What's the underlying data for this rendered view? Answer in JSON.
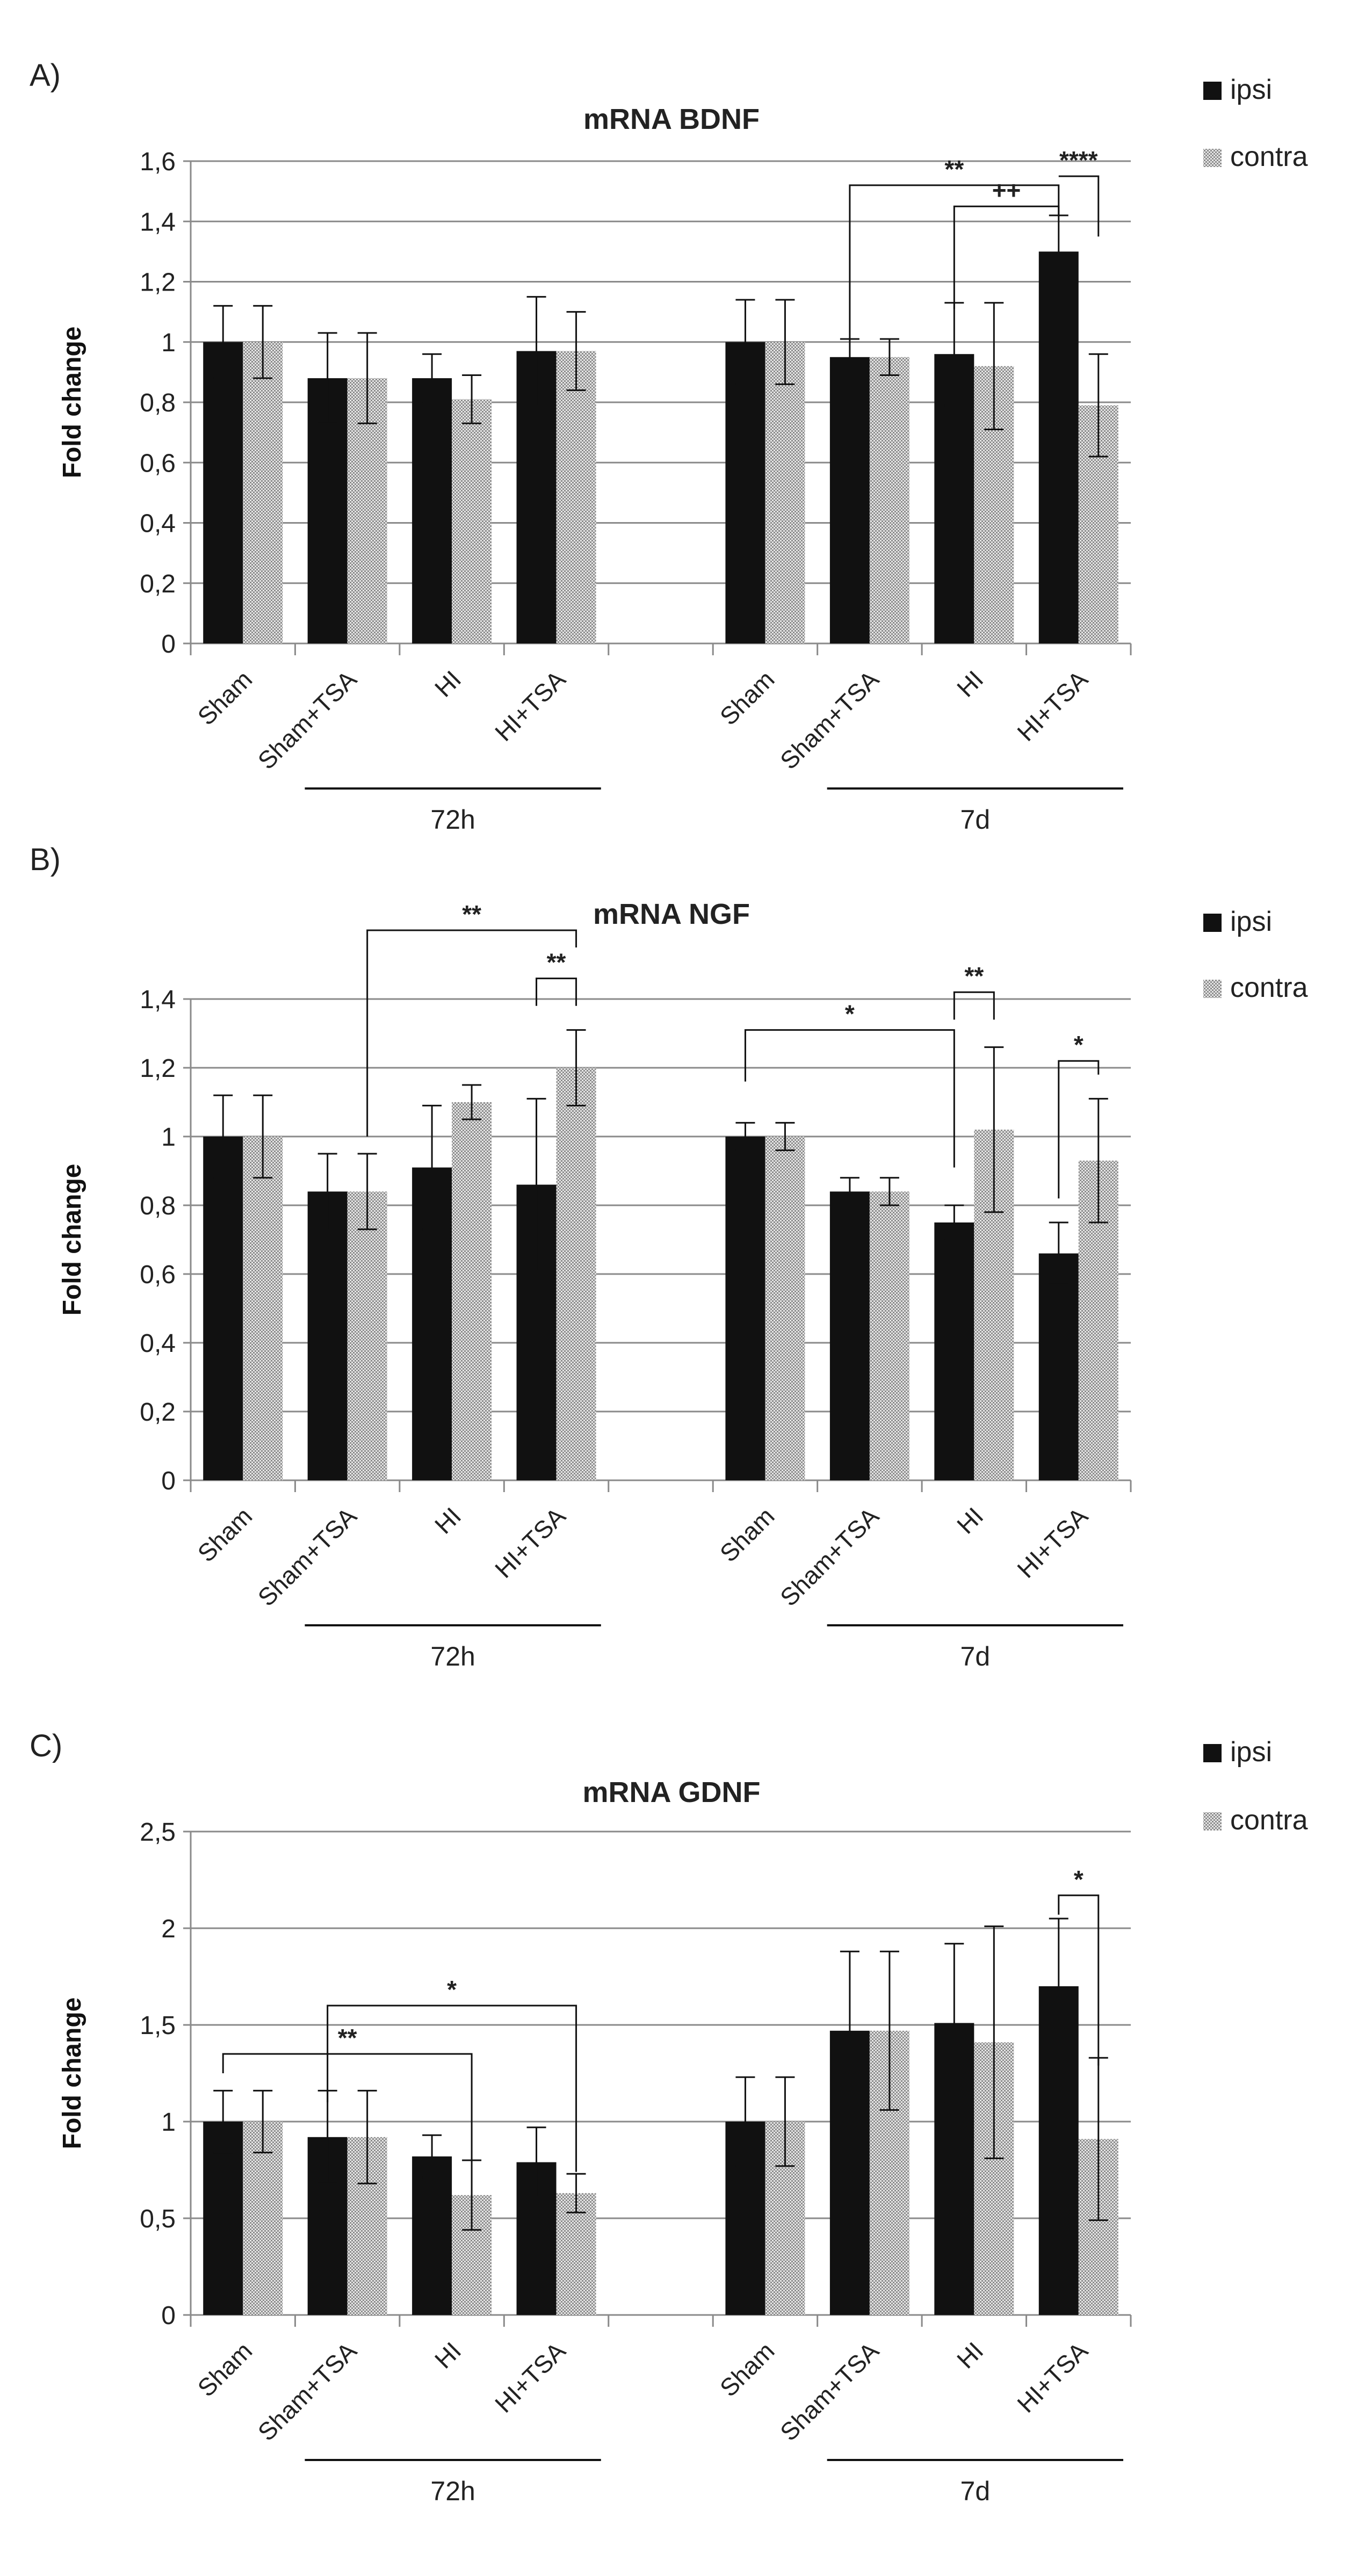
{
  "chart_data": [
    {
      "panel": "A)",
      "type": "bar",
      "title": "mRNA BDNF",
      "ylabel": "Fold change",
      "ylim": [
        0,
        1.6
      ],
      "yticks": [
        "0",
        "0,2",
        "0,4",
        "0,6",
        "0,8",
        "1",
        "1,2",
        "1,4",
        "1,6"
      ],
      "categories": [
        "Sham",
        "Sham+TSA",
        "HI",
        "HI+TSA",
        "Sham",
        "Sham+TSA",
        "HI",
        "HI+TSA"
      ],
      "groups": [
        {
          "label": "72h",
          "from": 1,
          "to": 3
        },
        {
          "label": "7d",
          "from": 5,
          "to": 7
        }
      ],
      "series": [
        {
          "name": "ipsi",
          "values": [
            1.0,
            0.88,
            0.88,
            0.97,
            1.0,
            0.95,
            0.96,
            1.3
          ],
          "errors": [
            0.12,
            0.15,
            0.08,
            0.18,
            0.14,
            0.06,
            0.17,
            0.12
          ]
        },
        {
          "name": "contra",
          "values": [
            1.0,
            0.88,
            0.81,
            0.97,
            1.0,
            0.95,
            0.92,
            0.79
          ],
          "errors": [
            0.12,
            0.15,
            0.08,
            0.13,
            0.14,
            0.06,
            0.21,
            0.17
          ]
        }
      ],
      "significance": [
        {
          "label": "**",
          "from": [
            5,
            "ipsi"
          ],
          "to": [
            7,
            "ipsi"
          ],
          "level": 1.52,
          "d1": 0.51,
          "d2": 0.1
        },
        {
          "label": "++",
          "from": [
            6,
            "ipsi"
          ],
          "to": [
            7,
            "ipsi"
          ],
          "level": 1.45,
          "d1": 0.34,
          "d2": 0.03
        },
        {
          "label": "****",
          "from": [
            7,
            "ipsi"
          ],
          "to": [
            7,
            "contra"
          ],
          "level": 1.55,
          "d1": 0.0,
          "d2": 0.2,
          "custom": true
        }
      ]
    },
    {
      "panel": "B)",
      "type": "bar",
      "title": "mRNA NGF",
      "ylabel": "Fold change",
      "ylim": [
        0,
        1.4
      ],
      "yticks": [
        "0",
        "0,2",
        "0,4",
        "0,6",
        "0,8",
        "1",
        "1,2",
        "1,4"
      ],
      "categories": [
        "Sham",
        "Sham+TSA",
        "HI",
        "HI+TSA",
        "Sham",
        "Sham+TSA",
        "HI",
        "HI+TSA"
      ],
      "groups": [
        {
          "label": "72h",
          "from": 1,
          "to": 3
        },
        {
          "label": "7d",
          "from": 5,
          "to": 7
        }
      ],
      "series": [
        {
          "name": "ipsi",
          "values": [
            1.0,
            0.84,
            0.91,
            0.86,
            1.0,
            0.84,
            0.75,
            0.66
          ],
          "errors": [
            0.12,
            0.11,
            0.18,
            0.25,
            0.04,
            0.04,
            0.05,
            0.09
          ]
        },
        {
          "name": "contra",
          "values": [
            1.0,
            0.84,
            1.1,
            1.2,
            1.0,
            0.84,
            1.02,
            0.93
          ],
          "errors": [
            0.12,
            0.11,
            0.05,
            0.11,
            0.04,
            0.04,
            0.24,
            0.18
          ]
        }
      ],
      "significance": [
        {
          "label": "**",
          "from": [
            1,
            "contra"
          ],
          "to": [
            3,
            "contra"
          ],
          "level": 1.6,
          "d1": 0.6,
          "d2": 0.05
        },
        {
          "label": "**",
          "from": [
            3,
            "ipsi"
          ],
          "to": [
            3,
            "contra"
          ],
          "level": 1.46,
          "d1": 0.08,
          "d2": 0.08
        },
        {
          "label": "*",
          "from": [
            4,
            "ipsi"
          ],
          "to": [
            6,
            "ipsi"
          ],
          "level": 1.31,
          "d1": 0.15,
          "d2": 0.4
        },
        {
          "label": "**",
          "from": [
            6,
            "ipsi"
          ],
          "to": [
            6,
            "contra"
          ],
          "level": 1.42,
          "d1": 0.08,
          "d2": 0.08
        },
        {
          "label": "*",
          "from": [
            7,
            "ipsi"
          ],
          "to": [
            7,
            "contra"
          ],
          "level": 1.22,
          "d1": 0.4,
          "d2": 0.04
        }
      ]
    },
    {
      "panel": "C)",
      "type": "bar",
      "title": "mRNA GDNF",
      "ylabel": "Fold change",
      "ylim": [
        0,
        2.5
      ],
      "yticks": [
        "0",
        "0,5",
        "1",
        "1,5",
        "2",
        "2,5"
      ],
      "categories": [
        "Sham",
        "Sham+TSA",
        "HI",
        "HI+TSA",
        "Sham",
        "Sham+TSA",
        "HI",
        "HI+TSA"
      ],
      "groups": [
        {
          "label": "72h",
          "from": 1,
          "to": 3
        },
        {
          "label": "7d",
          "from": 5,
          "to": 7
        }
      ],
      "series": [
        {
          "name": "ipsi",
          "values": [
            1.0,
            0.92,
            0.82,
            0.79,
            1.0,
            1.47,
            1.51,
            1.7
          ],
          "errors": [
            0.16,
            0.24,
            0.11,
            0.18,
            0.23,
            0.41,
            0.41,
            0.35
          ]
        },
        {
          "name": "contra",
          "values": [
            1.0,
            0.92,
            0.62,
            0.63,
            1.0,
            1.47,
            1.41,
            0.91
          ],
          "errors": [
            0.16,
            0.24,
            0.18,
            0.1,
            0.23,
            0.41,
            0.6,
            0.42
          ]
        }
      ],
      "significance": [
        {
          "label": "**",
          "from": [
            0,
            "ipsi"
          ],
          "to": [
            2,
            "contra"
          ],
          "level": 1.35,
          "d1": 0.1,
          "d2": 0.55
        },
        {
          "label": "*",
          "from": [
            1,
            "ipsi"
          ],
          "to": [
            3,
            "contra"
          ],
          "level": 1.6,
          "d1": 0.5,
          "d2": 0.86
        },
        {
          "label": "*",
          "from": [
            7,
            "ipsi"
          ],
          "to": [
            7,
            "contra"
          ],
          "level": 2.17,
          "d1": 0.1,
          "d2": 0.88
        }
      ]
    }
  ],
  "legend": {
    "ipsi": "ipsi",
    "contra": "contra"
  },
  "colors": {
    "ipsi": "#111111",
    "contra": "#cfcfcf",
    "axis": "#8a8a8a",
    "grid": "#8a8a8a"
  }
}
